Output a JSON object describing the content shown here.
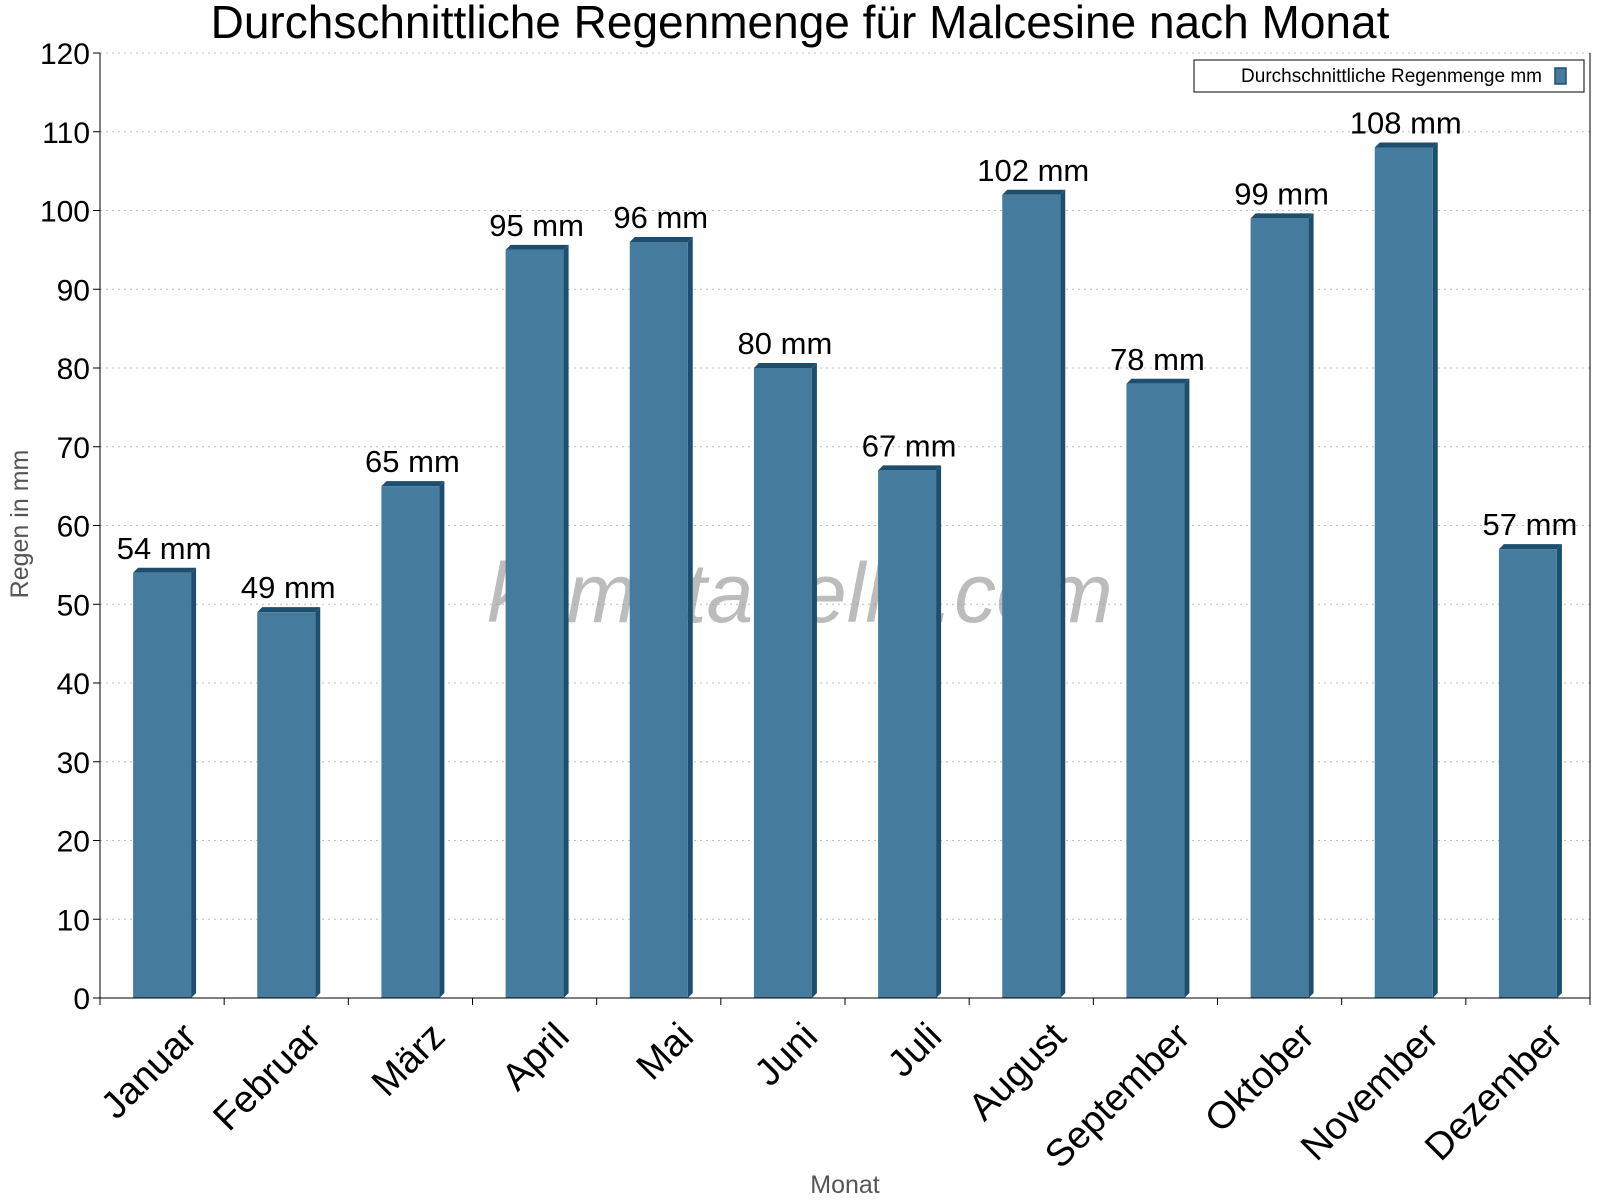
{
  "chart_data": {
    "type": "bar",
    "title": "Durchschnittliche Regenmenge für Malcesine nach Monat",
    "xlabel": "Monat",
    "ylabel": "Regen in mm",
    "ylim": [
      0,
      120
    ],
    "yticks": [
      0,
      10,
      20,
      30,
      40,
      50,
      60,
      70,
      80,
      90,
      100,
      110,
      120
    ],
    "grid": true,
    "legend_position": "top-right",
    "categories": [
      "Januar",
      "Februar",
      "März",
      "April",
      "Mai",
      "Juni",
      "Juli",
      "August",
      "September",
      "Oktober",
      "November",
      "Dezember"
    ],
    "series": [
      {
        "name": "Durchschnittliche Regenmenge mm",
        "values": [
          54,
          49,
          65,
          95,
          96,
          80,
          67,
          102,
          78,
          99,
          108,
          57
        ],
        "labels": [
          "54 mm",
          "49 mm",
          "65 mm",
          "95 mm",
          "96 mm",
          "80 mm",
          "67 mm",
          "102 mm",
          "78 mm",
          "99 mm",
          "108 mm",
          "57 mm"
        ],
        "color": "#457b9d",
        "shade_color": "#1d4e6e"
      }
    ],
    "watermark": "klimatabelle.com"
  }
}
